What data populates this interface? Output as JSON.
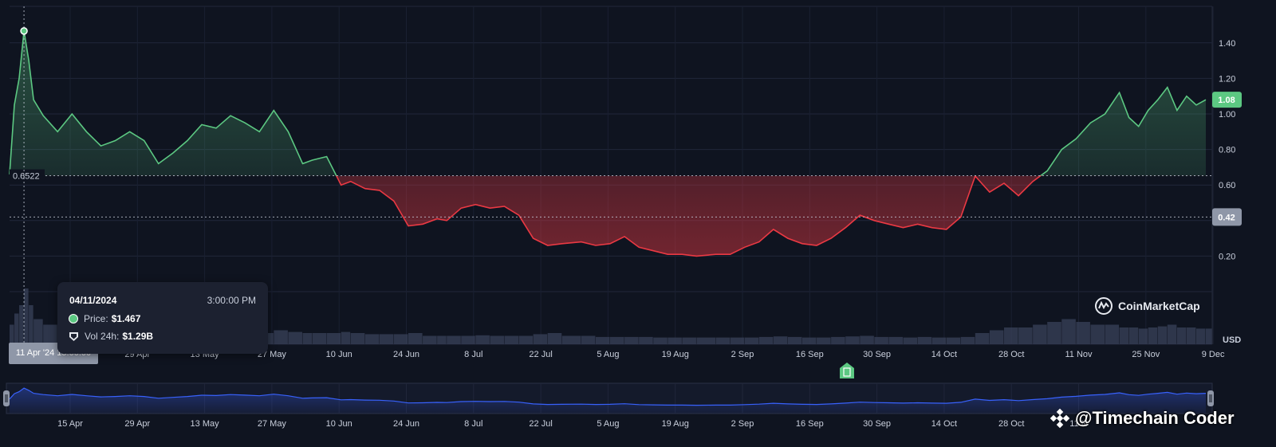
{
  "chart_data": {
    "type": "area",
    "baseline": 0.6522,
    "baseline_label": "0.6522",
    "current_price_label": "1.08",
    "crosshair_price_label": "0.42",
    "y_ticks": [
      "1.40",
      "1.20",
      "1.00",
      "0.80",
      "0.60",
      "0.20"
    ],
    "y_unit_label": "USD",
    "x_ticks": [
      "15 Apr",
      "29 Apr",
      "13 May",
      "27 May",
      "10 Jun",
      "24 Jun",
      "8 Jul",
      "22 Jul",
      "5 Aug",
      "19 Aug",
      "2 Sep",
      "16 Sep",
      "30 Sep",
      "14 Oct",
      "28 Oct",
      "11 Nov",
      "25 Nov",
      "9 Dec"
    ],
    "x": [
      "2024-04-08",
      "2024-04-09",
      "2024-04-10",
      "2024-04-11",
      "2024-04-12",
      "2024-04-13",
      "2024-04-15",
      "2024-04-18",
      "2024-04-21",
      "2024-04-24",
      "2024-04-27",
      "2024-04-30",
      "2024-05-03",
      "2024-05-06",
      "2024-05-09",
      "2024-05-12",
      "2024-05-15",
      "2024-05-18",
      "2024-05-21",
      "2024-05-24",
      "2024-05-27",
      "2024-05-30",
      "2024-06-02",
      "2024-06-05",
      "2024-06-08",
      "2024-06-10",
      "2024-06-13",
      "2024-06-16",
      "2024-06-18",
      "2024-06-21",
      "2024-06-24",
      "2024-06-27",
      "2024-06-30",
      "2024-07-03",
      "2024-07-06",
      "2024-07-08",
      "2024-07-11",
      "2024-07-14",
      "2024-07-17",
      "2024-07-20",
      "2024-07-23",
      "2024-07-26",
      "2024-07-29",
      "2024-08-01",
      "2024-08-05",
      "2024-08-08",
      "2024-08-11",
      "2024-08-14",
      "2024-08-17",
      "2024-08-20",
      "2024-08-23",
      "2024-08-26",
      "2024-08-29",
      "2024-09-02",
      "2024-09-05",
      "2024-09-08",
      "2024-09-11",
      "2024-09-14",
      "2024-09-17",
      "2024-09-20",
      "2024-09-23",
      "2024-09-26",
      "2024-09-29",
      "2024-10-02",
      "2024-10-05",
      "2024-10-08",
      "2024-10-11",
      "2024-10-14",
      "2024-10-17",
      "2024-10-20",
      "2024-10-23",
      "2024-10-26",
      "2024-10-29",
      "2024-11-01",
      "2024-11-04",
      "2024-11-07",
      "2024-11-10",
      "2024-11-13",
      "2024-11-16",
      "2024-11-19",
      "2024-11-22",
      "2024-11-25",
      "2024-11-27",
      "2024-11-29",
      "2024-12-01",
      "2024-12-03",
      "2024-12-05",
      "2024-12-07",
      "2024-12-09",
      "2024-12-11",
      "2024-12-13"
    ],
    "series": [
      {
        "name": "Price",
        "values": [
          0.66,
          1.05,
          1.2,
          1.467,
          1.3,
          1.08,
          0.99,
          0.9,
          1.0,
          0.9,
          0.82,
          0.85,
          0.9,
          0.85,
          0.72,
          0.78,
          0.85,
          0.94,
          0.92,
          0.99,
          0.95,
          0.9,
          1.02,
          0.9,
          0.72,
          0.74,
          0.76,
          0.6,
          0.62,
          0.58,
          0.57,
          0.51,
          0.37,
          0.38,
          0.41,
          0.4,
          0.47,
          0.49,
          0.47,
          0.48,
          0.43,
          0.3,
          0.26,
          0.27,
          0.28,
          0.26,
          0.27,
          0.31,
          0.25,
          0.23,
          0.21,
          0.21,
          0.2,
          0.21,
          0.21,
          0.25,
          0.28,
          0.35,
          0.3,
          0.27,
          0.26,
          0.3,
          0.36,
          0.43,
          0.4,
          0.38,
          0.36,
          0.38,
          0.36,
          0.35,
          0.42,
          0.65,
          0.56,
          0.61,
          0.54,
          0.62,
          0.68,
          0.8,
          0.86,
          0.95,
          1.0,
          1.12,
          0.98,
          0.93,
          1.02,
          1.08,
          1.15,
          1.02,
          1.1,
          1.05,
          1.08
        ]
      }
    ],
    "volume_values": [
      0.35,
      0.55,
      0.7,
      1.0,
      0.7,
      0.45,
      0.35,
      0.3,
      0.3,
      0.25,
      0.25,
      0.22,
      0.22,
      0.2,
      0.2,
      0.22,
      0.2,
      0.22,
      0.2,
      0.22,
      0.22,
      0.2,
      0.25,
      0.22,
      0.2,
      0.2,
      0.2,
      0.22,
      0.2,
      0.18,
      0.18,
      0.18,
      0.2,
      0.15,
      0.15,
      0.15,
      0.15,
      0.16,
      0.15,
      0.15,
      0.15,
      0.18,
      0.2,
      0.15,
      0.15,
      0.13,
      0.13,
      0.13,
      0.13,
      0.12,
      0.12,
      0.12,
      0.12,
      0.12,
      0.12,
      0.12,
      0.13,
      0.14,
      0.13,
      0.12,
      0.12,
      0.13,
      0.14,
      0.15,
      0.13,
      0.13,
      0.12,
      0.13,
      0.12,
      0.12,
      0.13,
      0.2,
      0.25,
      0.3,
      0.3,
      0.35,
      0.4,
      0.45,
      0.4,
      0.35,
      0.35,
      0.3,
      0.3,
      0.28,
      0.3,
      0.32,
      0.35,
      0.3,
      0.3,
      0.28,
      0.28
    ],
    "positive_color": "#5cc882",
    "negative_color": "#ea3943",
    "nav_color": "#3861fb"
  },
  "navigator": {
    "x_ticks": [
      "15 Apr",
      "29 Apr",
      "13 May",
      "27 May",
      "10 Jun",
      "24 Jun",
      "8 Jul",
      "22 Jul",
      "5 Aug",
      "19 Aug",
      "2 Sep",
      "16 Sep",
      "30 Sep",
      "14 Oct",
      "28 Oct",
      "11 N"
    ]
  },
  "tooltip": {
    "date": "04/11/2024",
    "time": "3:00:00 PM",
    "price_label": "Price:",
    "price_value": "$1.467",
    "vol_label": "Vol 24h:",
    "vol_value": "$1.29B"
  },
  "crosshair_date_label": "11 Apr '24 15:00:00",
  "logo_text": "CoinMarketCap",
  "watermark_text": "@Timechain Coder"
}
